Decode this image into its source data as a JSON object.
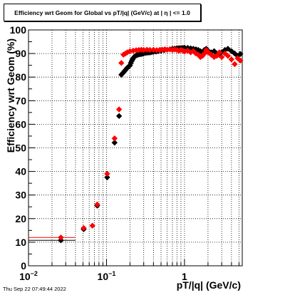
{
  "chart_data": {
    "type": "scatter",
    "title": "Efficiency wrt Geom for Global vs pT/|q| (GeV/c) at |  η  | <= 1.0",
    "xlabel": "pT/|q| (GeV/c)",
    "ylabel": "Efficiency wrt Geom (%)",
    "xscale": "log",
    "xlim": [
      0.01,
      5.5
    ],
    "ylim": [
      0,
      100
    ],
    "x_ticks": [
      {
        "value": 0.01,
        "base": "10",
        "exp": "−2"
      },
      {
        "value": 0.1,
        "base": "10",
        "exp": "−1"
      },
      {
        "value": 1,
        "base": "1",
        "exp": ""
      }
    ],
    "y_ticks": [
      "0",
      "10",
      "20",
      "30",
      "40",
      "50",
      "60",
      "70",
      "80",
      "90",
      "100"
    ],
    "grid": true,
    "series": [
      {
        "color": "#000000",
        "points": [
          [
            0.026,
            10.8
          ],
          [
            0.051,
            15.5
          ],
          [
            0.076,
            25.5
          ],
          [
            0.102,
            37.5
          ],
          [
            0.127,
            52.2
          ],
          [
            0.145,
            63.5
          ],
          [
            0.155,
            81.0
          ],
          [
            0.16,
            81.5
          ],
          [
            0.165,
            82.0
          ],
          [
            0.17,
            82.5
          ],
          [
            0.175,
            83.0
          ],
          [
            0.18,
            83.5
          ],
          [
            0.185,
            84.0
          ],
          [
            0.19,
            84.3
          ],
          [
            0.195,
            84.6
          ],
          [
            0.2,
            85.0
          ],
          [
            0.205,
            86.0
          ],
          [
            0.21,
            86.8
          ],
          [
            0.215,
            87.4
          ],
          [
            0.22,
            88.0
          ],
          [
            0.225,
            88.4
          ],
          [
            0.23,
            88.8
          ],
          [
            0.24,
            89.2
          ],
          [
            0.25,
            89.4
          ],
          [
            0.26,
            89.6
          ],
          [
            0.27,
            89.7
          ],
          [
            0.28,
            89.8
          ],
          [
            0.29,
            89.9
          ],
          [
            0.3,
            90.0
          ],
          [
            0.32,
            90.2
          ],
          [
            0.34,
            90.3
          ],
          [
            0.36,
            90.4
          ],
          [
            0.38,
            90.6
          ],
          [
            0.4,
            90.7
          ],
          [
            0.43,
            90.8
          ],
          [
            0.46,
            91.0
          ],
          [
            0.5,
            91.2
          ],
          [
            0.55,
            91.4
          ],
          [
            0.6,
            91.6
          ],
          [
            0.65,
            91.8
          ],
          [
            0.7,
            92.0
          ],
          [
            0.75,
            92.1
          ],
          [
            0.8,
            92.2
          ],
          [
            0.85,
            92.3
          ],
          [
            0.9,
            92.3
          ],
          [
            0.95,
            92.4
          ],
          [
            1.0,
            92.5
          ],
          [
            1.1,
            92.4
          ],
          [
            1.2,
            92.2
          ],
          [
            1.3,
            92.0
          ],
          [
            1.4,
            91.8
          ],
          [
            1.5,
            91.5
          ],
          [
            1.6,
            91.0
          ],
          [
            1.7,
            90.5
          ],
          [
            1.8,
            91.5
          ],
          [
            1.9,
            92.0
          ],
          [
            2.0,
            91.2
          ],
          [
            2.2,
            90.5
          ],
          [
            2.4,
            91.0
          ],
          [
            2.6,
            90.0
          ],
          [
            2.8,
            89.5
          ],
          [
            3.0,
            90.5
          ],
          [
            3.3,
            91.5
          ],
          [
            3.6,
            92.0
          ],
          [
            4.0,
            91.0
          ],
          [
            4.4,
            90.0
          ],
          [
            4.8,
            89.0
          ],
          [
            5.2,
            89.8
          ]
        ],
        "first_bin_span": [
          0.01,
          0.04
        ]
      },
      {
        "color": "#ff0000",
        "points": [
          [
            0.026,
            12.0
          ],
          [
            0.051,
            16.0
          ],
          [
            0.066,
            17.0
          ],
          [
            0.076,
            26.0
          ],
          [
            0.102,
            39.0
          ],
          [
            0.127,
            54.0
          ],
          [
            0.145,
            66.3
          ],
          [
            0.155,
            86.0
          ],
          [
            0.165,
            89.5
          ],
          [
            0.175,
            90.0
          ],
          [
            0.185,
            90.5
          ],
          [
            0.2,
            91.0
          ],
          [
            0.22,
            91.2
          ],
          [
            0.24,
            91.4
          ],
          [
            0.26,
            91.5
          ],
          [
            0.28,
            91.6
          ],
          [
            0.3,
            91.5
          ],
          [
            0.33,
            91.6
          ],
          [
            0.36,
            91.5
          ],
          [
            0.4,
            91.6
          ],
          [
            0.44,
            91.4
          ],
          [
            0.48,
            91.5
          ],
          [
            0.52,
            91.6
          ],
          [
            0.56,
            91.8
          ],
          [
            0.6,
            91.6
          ],
          [
            0.65,
            91.8
          ],
          [
            0.7,
            91.5
          ],
          [
            0.75,
            91.7
          ],
          [
            0.8,
            91.5
          ],
          [
            0.85,
            91.2
          ],
          [
            0.9,
            91.5
          ],
          [
            0.95,
            91.3
          ],
          [
            1.0,
            90.8
          ],
          [
            1.1,
            91.2
          ],
          [
            1.2,
            90.5
          ],
          [
            1.3,
            91.0
          ],
          [
            1.4,
            90.0
          ],
          [
            1.5,
            89.5
          ],
          [
            1.6,
            88.5
          ],
          [
            1.7,
            89.0
          ],
          [
            1.8,
            90.0
          ],
          [
            1.9,
            91.5
          ],
          [
            2.0,
            90.5
          ],
          [
            2.2,
            89.5
          ],
          [
            2.4,
            88.5
          ],
          [
            2.6,
            89.0
          ],
          [
            2.8,
            90.5
          ],
          [
            3.0,
            88.5
          ],
          [
            3.3,
            90.0
          ],
          [
            3.6,
            89.0
          ],
          [
            4.0,
            87.5
          ],
          [
            4.4,
            85.5
          ],
          [
            4.8,
            88.0
          ],
          [
            5.2,
            87.0
          ]
        ],
        "first_bin_span": [
          0.01,
          0.04
        ]
      }
    ]
  },
  "footer": {
    "timestamp": "Thu Sep 22 07:49:44 2022"
  }
}
